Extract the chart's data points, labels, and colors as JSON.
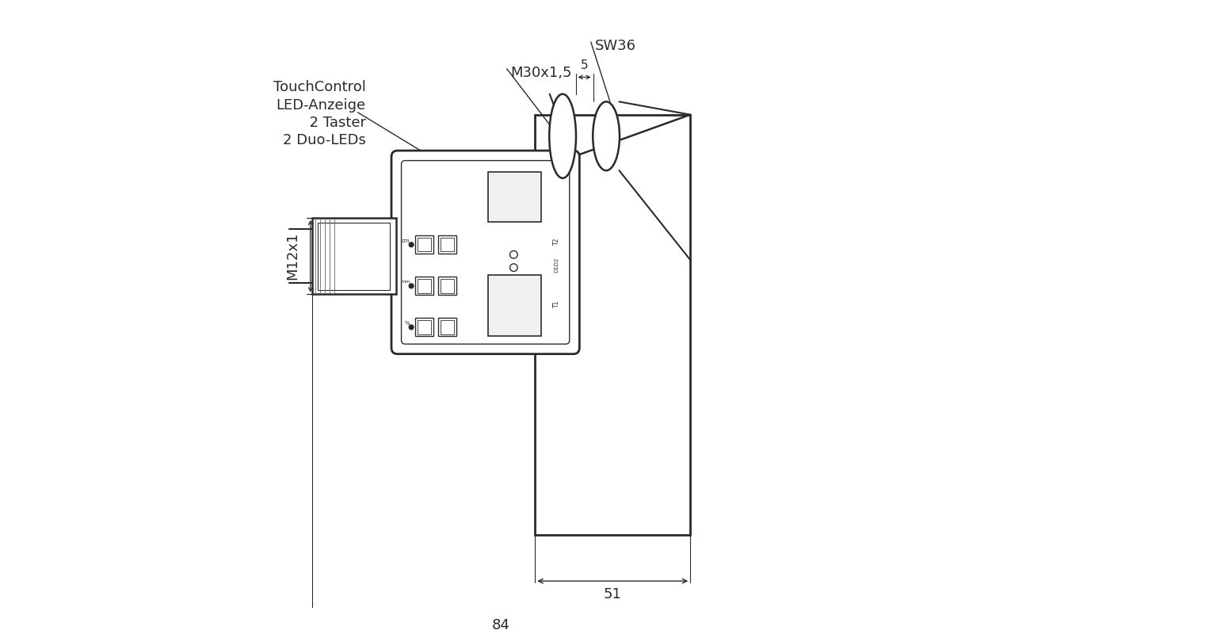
{
  "bg_color": "#ffffff",
  "line_color": "#2a2a2a",
  "dim_color": "#2a2a2a",
  "annotations": {
    "touch_control": "TouchControl\nLED-Anzeige\n  2 Taster\n2 Duo-LEDs",
    "sw36": "SW36",
    "m30x15": "M30x1,5",
    "m12x1": "M12x1",
    "dim_5": "5",
    "dim_51": "51",
    "dim_84": "84"
  },
  "figsize": [
    15.36,
    7.95
  ],
  "dpi": 100
}
